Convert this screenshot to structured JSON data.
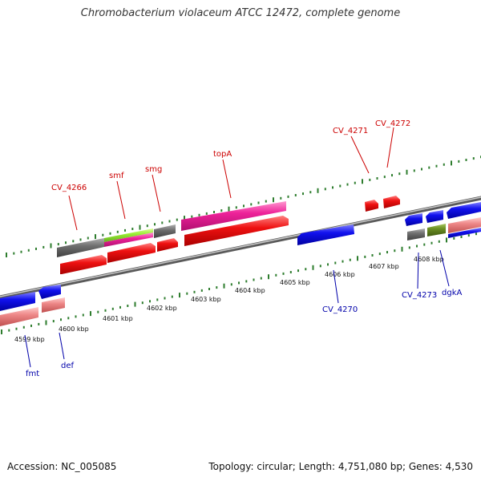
{
  "title": "Chromobacterium violaceum ATCC 12472, complete genome",
  "footer": {
    "accession": "Accession: NC_005085",
    "summary": "Topology: circular; Length: 4,751,080 bp; Genes: 4,530"
  },
  "scale": {
    "labels": [
      "4599 kbp",
      "4600 kbp",
      "4601 kbp",
      "4602 kbp",
      "4603 kbp",
      "4604 kbp",
      "4605 kbp",
      "4606 kbp",
      "4607 kbp",
      "4608 kbp"
    ]
  },
  "colors": {
    "backbone": "#909090",
    "ticks": "#2e7d2e",
    "forward_label": "#cc0000",
    "reverse_label": "#0000aa",
    "gray_feature": "#707070",
    "red_feature": "#ee1111",
    "magenta_feature": "#ee2299",
    "lime_feature": "#99ee33",
    "blue_feature": "#1111ee",
    "pink_feature": "#ee8888",
    "olive_feature": "#6b8e23"
  },
  "labels": {
    "forward": [
      "CV_4266",
      "smf",
      "smg",
      "topA",
      "CV_4271",
      "CV_4272"
    ],
    "reverse": [
      "fmt",
      "def",
      "CV_4270",
      "CV_4273",
      "dgkA"
    ]
  }
}
